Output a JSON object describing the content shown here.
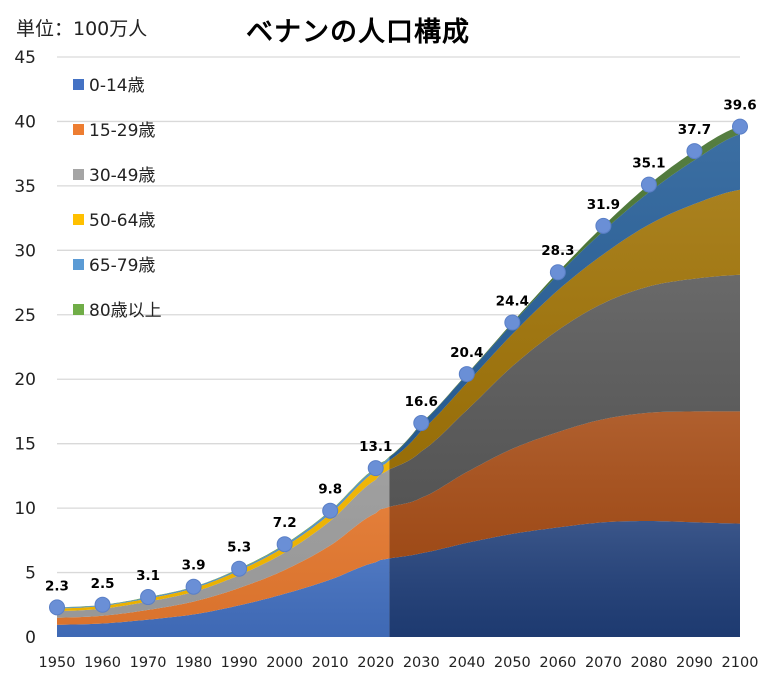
{
  "unit_label": "単位：100万人",
  "chart_data": {
    "type": "area",
    "title": "ベナンの人口構成",
    "ylabel": "単位：100万人",
    "xlabel": "",
    "ylim": [
      0,
      45
    ],
    "yticks": [
      0,
      5,
      10,
      15,
      20,
      25,
      30,
      35,
      40,
      45
    ],
    "xlim": [
      1950,
      2100
    ],
    "xticks": [
      1950,
      1960,
      1970,
      1980,
      1990,
      2000,
      2010,
      2020,
      2030,
      2040,
      2050,
      2060,
      2070,
      2080,
      2090,
      2100
    ],
    "grid": true,
    "legend_position": "top-left",
    "projection_start_year": 2023,
    "stacked": true,
    "x": [
      1950,
      1960,
      1970,
      1980,
      1990,
      2000,
      2010,
      2020,
      2023,
      2030,
      2040,
      2050,
      2060,
      2070,
      2080,
      2090,
      2100
    ],
    "series": [
      {
        "name": "0-14歳",
        "color": "#4472c4",
        "proj_color": "#203f7a",
        "values": [
          0.95,
          1.05,
          1.35,
          1.75,
          2.45,
          3.35,
          4.45,
          5.8,
          6.1,
          6.5,
          7.3,
          8.0,
          8.5,
          8.9,
          9.0,
          8.9,
          8.8
        ]
      },
      {
        "name": "15-29歳",
        "color": "#ed7d31",
        "proj_color": "#a64a12",
        "values": [
          0.55,
          0.6,
          0.75,
          1.0,
          1.35,
          1.85,
          2.65,
          3.8,
          4.0,
          4.3,
          5.5,
          6.6,
          7.4,
          8.0,
          8.4,
          8.6,
          8.7
        ]
      },
      {
        "name": "30-49歳",
        "color": "#a5a5a5",
        "proj_color": "#555555",
        "values": [
          0.5,
          0.55,
          0.65,
          0.75,
          1.0,
          1.35,
          1.9,
          2.6,
          2.9,
          3.6,
          4.8,
          6.4,
          7.9,
          9.0,
          9.8,
          10.3,
          10.6
        ]
      },
      {
        "name": "50-64歳",
        "color": "#ffc000",
        "proj_color": "#9e7000",
        "values": [
          0.2,
          0.22,
          0.24,
          0.28,
          0.36,
          0.45,
          0.55,
          0.65,
          0.7,
          1.6,
          2.1,
          2.5,
          3.1,
          3.8,
          4.8,
          5.8,
          6.6
        ]
      },
      {
        "name": "65-79歳",
        "color": "#5b9bd5",
        "proj_color": "#215b96",
        "values": [
          0.08,
          0.06,
          0.08,
          0.1,
          0.1,
          0.15,
          0.2,
          0.2,
          0.25,
          0.55,
          0.65,
          0.8,
          1.2,
          1.8,
          2.5,
          3.4,
          4.3
        ]
      },
      {
        "name": "80歳以上",
        "color": "#70ad47",
        "proj_color": "#3f6d28",
        "values": [
          0.02,
          0.02,
          0.03,
          0.02,
          0.04,
          0.05,
          0.05,
          0.05,
          0.05,
          0.05,
          0.05,
          0.1,
          0.2,
          0.4,
          0.6,
          0.7,
          0.6
        ]
      }
    ],
    "totals": {
      "name": "総人口",
      "x": [
        1950,
        1960,
        1970,
        1980,
        1990,
        2000,
        2010,
        2020,
        2030,
        2040,
        2050,
        2060,
        2070,
        2080,
        2090,
        2100
      ],
      "values": [
        2.3,
        2.5,
        3.1,
        3.9,
        5.3,
        7.2,
        9.8,
        13.1,
        16.6,
        20.4,
        24.4,
        28.3,
        31.9,
        35.1,
        37.7,
        39.6
      ],
      "labels": [
        "2.3",
        "2.5",
        "3.1",
        "3.9",
        "5.3",
        "7.2",
        "9.8",
        "13.1",
        "16.6",
        "20.4",
        "24.4",
        "28.3",
        "31.9",
        "35.1",
        "37.7",
        "39.6"
      ],
      "marker_color": "#6a8fd6"
    }
  }
}
